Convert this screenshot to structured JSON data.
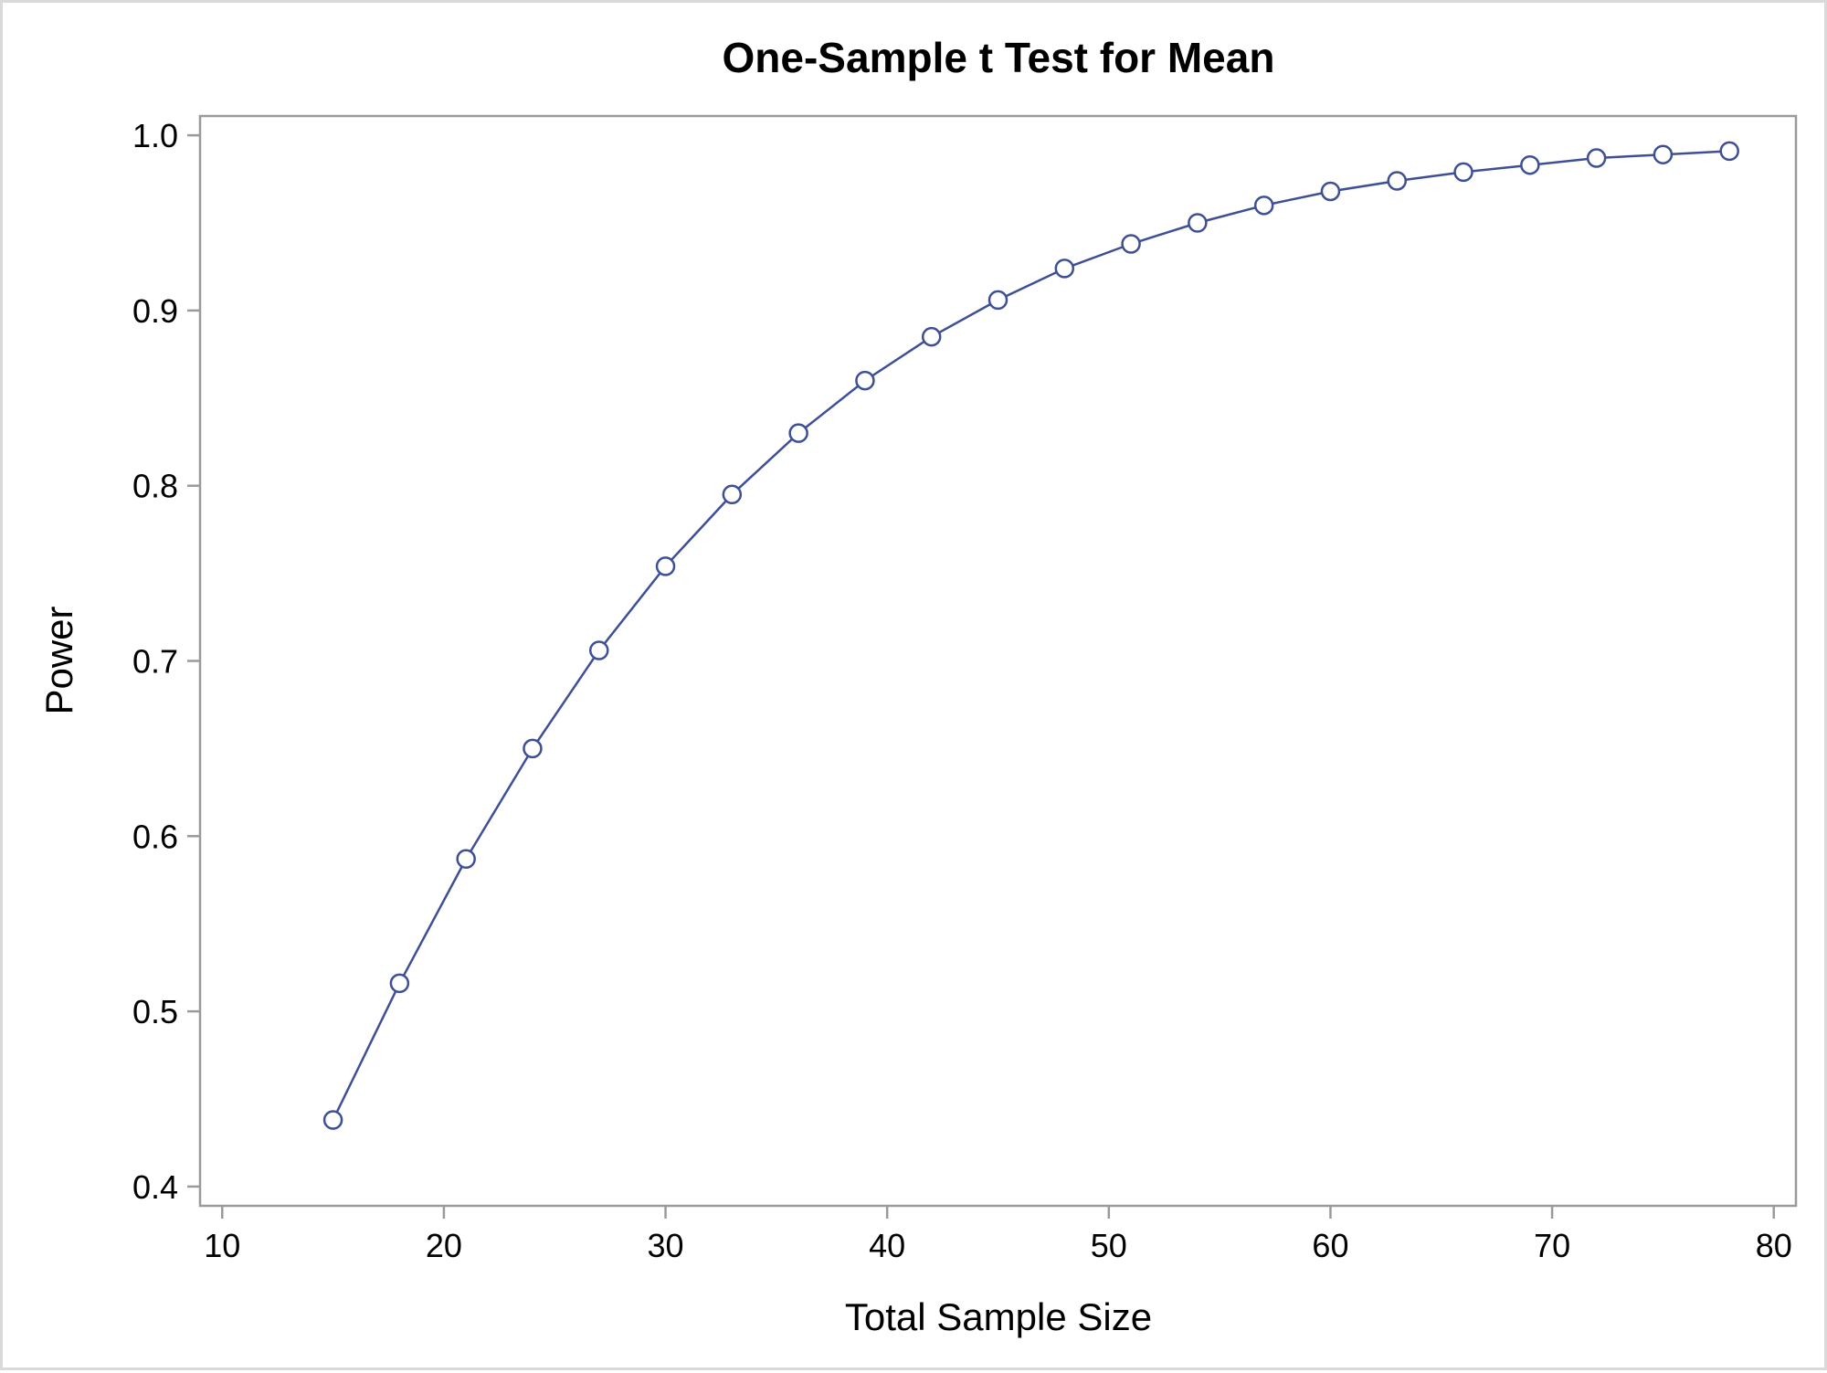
{
  "chart_data": {
    "type": "line",
    "title": "One-Sample t Test for Mean",
    "xlabel": "Total Sample Size",
    "ylabel": "Power",
    "xlim": [
      9,
      81
    ],
    "ylim": [
      0.389,
      1.011
    ],
    "xticks": [
      10,
      20,
      30,
      40,
      50,
      60,
      70,
      80
    ],
    "xtick_labels": [
      "10",
      "20",
      "30",
      "40",
      "50",
      "60",
      "70",
      "80"
    ],
    "yticks": [
      0.4,
      0.5,
      0.6,
      0.7,
      0.8,
      0.9,
      1.0
    ],
    "ytick_labels": [
      "0.4",
      "0.5",
      "0.6",
      "0.7",
      "0.8",
      "0.9",
      "1.0"
    ],
    "grid": false,
    "legend": "none",
    "marker": "open-circle",
    "line_color": "#3e4f96",
    "axis_color": "#9a9a9a",
    "series": [
      {
        "x": [
          15,
          18,
          21,
          24,
          27,
          30,
          33,
          36,
          39,
          42,
          45,
          48,
          51,
          54,
          57,
          60,
          63,
          66,
          69,
          72,
          75,
          78
        ],
        "values": [
          0.438,
          0.516,
          0.587,
          0.65,
          0.706,
          0.754,
          0.795,
          0.83,
          0.86,
          0.885,
          0.906,
          0.924,
          0.938,
          0.95,
          0.96,
          0.968,
          0.974,
          0.979,
          0.983,
          0.987,
          0.989,
          0.991
        ]
      }
    ]
  }
}
